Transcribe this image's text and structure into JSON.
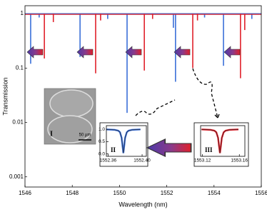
{
  "chart_data": [
    {
      "type": "dips",
      "log_y": true,
      "baseline": 1,
      "x_label": "Wavelength (nm)",
      "y_label": "Transmission",
      "xlim": [
        1546,
        1556
      ],
      "xticks": [
        1546,
        1548,
        1550,
        1552,
        1554,
        1556
      ],
      "ylim": [
        0.00065,
        1.4
      ],
      "yticks": [
        0.001,
        0.01,
        0.1,
        1
      ],
      "annotations": [
        "I",
        "50 µm"
      ],
      "series": [
        {
          "color": "#3a6fd8",
          "x": [
            1546.24,
            1546.6,
            1548.33,
            1549.5,
            1550.32,
            1552.28,
            1552.37,
            1553.6,
            1554.4,
            1555.6
          ],
          "values": [
            0.12,
            0.85,
            0.16,
            0.8,
            0.015,
            0.55,
            0.056,
            0.85,
            0.11,
            0.8
          ]
        },
        {
          "color": "#e0202a",
          "x": [
            1546.82,
            1547.2,
            1548.99,
            1549.2,
            1551.05,
            1551.4,
            1553.1,
            1553.3,
            1555.12,
            1555.3
          ],
          "values": [
            0.15,
            0.7,
            0.08,
            0.75,
            0.09,
            0.8,
            0.1,
            0.75,
            0.065,
            0.5
          ]
        }
      ]
    },
    {
      "type": "line",
      "label": "II",
      "xlim": [
        1552.358,
        1552.405
      ],
      "xticks": [
        1552.36,
        {
          "value": 1552.4,
          "label": "1552.40"
        }
      ],
      "ylim": [
        -0.1,
        1.15
      ],
      "yticks": [
        {
          "value": 0,
          "label": "0.0"
        },
        0.5,
        {
          "value": 1,
          "label": "1.0"
        }
      ],
      "series": [
        {
          "color": "#3a6fd8",
          "x": [
            1552.358,
            1552.368,
            1552.372,
            1552.374,
            1552.376,
            1552.377,
            1552.378,
            1552.379,
            1552.38,
            1552.382,
            1552.384,
            1552.388,
            1552.398
          ],
          "values": [
            0.995,
            0.979,
            0.943,
            0.88,
            0.651,
            0.328,
            0.03,
            0.328,
            0.651,
            0.88,
            0.943,
            0.979,
            0.995
          ]
        }
      ]
    },
    {
      "type": "line",
      "label": "III",
      "xlim": [
        1553.118,
        1553.166
      ],
      "xticks": [
        1553.12,
        1553.16
      ],
      "ylim": [
        -0.1,
        1.15
      ],
      "yticks": [],
      "series": [
        {
          "color": "#e0202a",
          "x": [
            1553.119,
            1553.129,
            1553.133,
            1553.135,
            1553.137,
            1553.138,
            1553.139,
            1553.14,
            1553.141,
            1553.143,
            1553.145,
            1553.149,
            1553.159
          ],
          "values": [
            0.995,
            0.979,
            0.943,
            0.88,
            0.651,
            0.328,
            0.03,
            0.328,
            0.651,
            0.88,
            0.943,
            0.979,
            0.995
          ]
        }
      ]
    }
  ]
}
